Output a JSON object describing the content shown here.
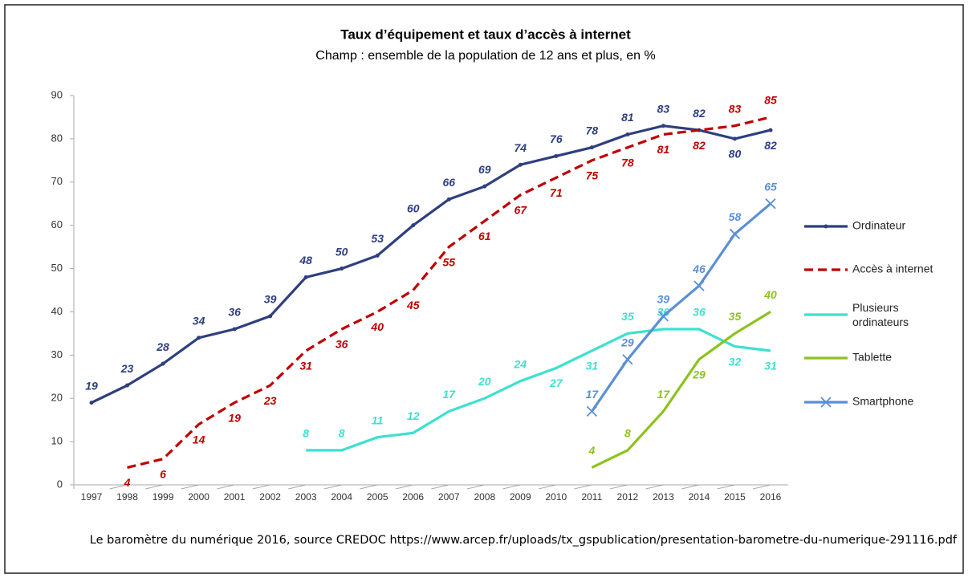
{
  "chart_data": {
    "type": "line",
    "title": "Taux d’équipement et taux d’accès à internet",
    "subtitle": "Champ : ensemble de la population de 12 ans et plus, en %",
    "categories": [
      "1997",
      "1998",
      "1999",
      "2000",
      "2001",
      "2002",
      "2003",
      "2004",
      "2005",
      "2006",
      "2007",
      "2008",
      "2009",
      "2010",
      "2011",
      "2012",
      "2013",
      "2014",
      "2015",
      "2016"
    ],
    "series": [
      {
        "name": "Ordinateur",
        "color": "#2e3f80",
        "dash": false,
        "marker": "dot",
        "values": [
          19,
          23,
          28,
          34,
          36,
          39,
          48,
          50,
          53,
          60,
          66,
          69,
          74,
          76,
          78,
          81,
          83,
          82,
          80,
          82
        ]
      },
      {
        "name": "Accès à internet",
        "color": "#c00000",
        "dash": true,
        "marker": "none",
        "values": [
          null,
          4,
          6,
          14,
          19,
          23,
          31,
          36,
          40,
          45,
          55,
          61,
          67,
          71,
          75,
          78,
          81,
          82,
          83,
          85
        ]
      },
      {
        "name": "Plusieurs ordinateurs",
        "color": "#3ee0cf",
        "dash": false,
        "marker": "none",
        "values": [
          null,
          null,
          null,
          null,
          null,
          null,
          8,
          8,
          11,
          12,
          17,
          20,
          24,
          27,
          31,
          35,
          36,
          36,
          32,
          31
        ]
      },
      {
        "name": "Tablette",
        "color": "#8dc21f",
        "dash": false,
        "marker": "none",
        "values": [
          null,
          null,
          null,
          null,
          null,
          null,
          null,
          null,
          null,
          null,
          null,
          null,
          null,
          null,
          4,
          8,
          17,
          29,
          35,
          40
        ]
      },
      {
        "name": "Smartphone",
        "color": "#5b8fd6",
        "dash": false,
        "marker": "x",
        "values": [
          null,
          null,
          null,
          null,
          null,
          null,
          null,
          null,
          null,
          null,
          null,
          null,
          null,
          null,
          17,
          29,
          39,
          46,
          58,
          65
        ]
      }
    ],
    "ylim": [
      0,
      90
    ],
    "yticks": [
      0,
      10,
      20,
      30,
      40,
      50,
      60,
      70,
      80,
      90
    ],
    "grid": false,
    "legend": "right",
    "source": "Le baromètre du numérique 2016, source CREDOC https://www.arcep.fr/uploads/tx_gspublication/presentation-barometre-du-numerique-291116.pdf"
  }
}
